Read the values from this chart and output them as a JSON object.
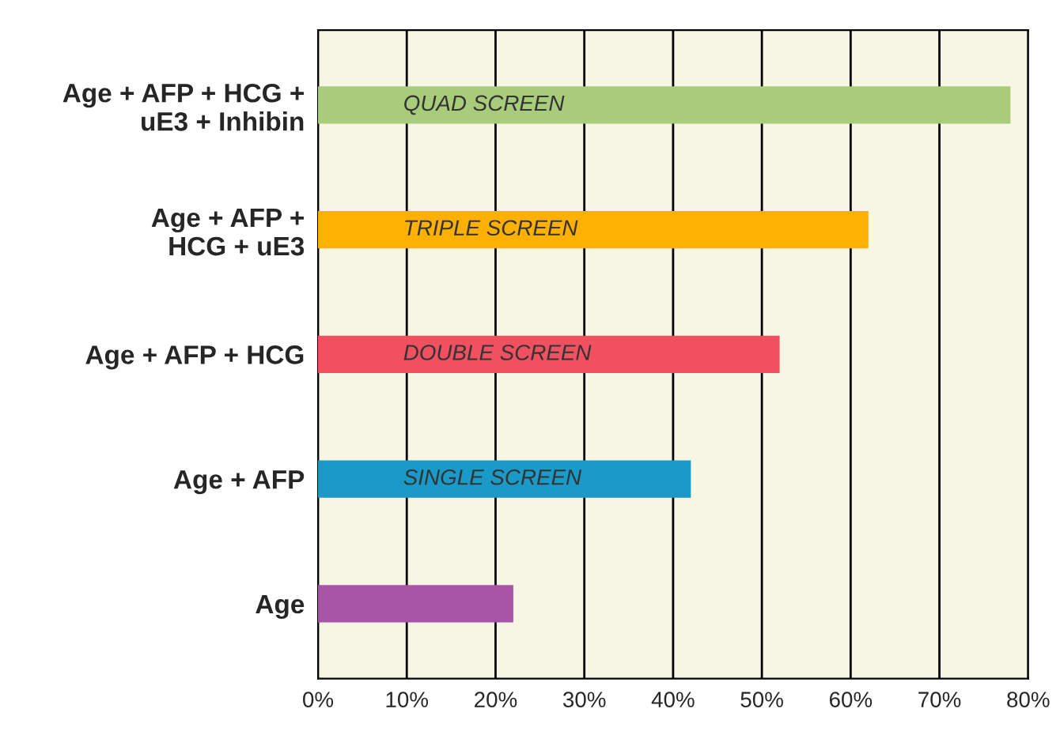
{
  "chart_data": {
    "type": "bar",
    "orientation": "horizontal",
    "categories": [
      "Age + AFP + HCG +\nuE3 + Inhibin",
      "Age + AFP +\nHCG + uE3",
      "Age + AFP + HCG",
      "Age + AFP",
      "Age"
    ],
    "values": [
      78,
      62,
      52,
      42,
      22
    ],
    "colors": [
      "#a9cc7a",
      "#ffb000",
      "#f05060",
      "#1a9ac9",
      "#a855a8"
    ],
    "xlim": [
      0,
      80
    ],
    "xticks": [
      {
        "value": 0,
        "label": "0%"
      },
      {
        "value": 10,
        "label": "10%"
      },
      {
        "value": 20,
        "label": "20%"
      },
      {
        "value": 30,
        "label": "30%"
      },
      {
        "value": 40,
        "label": "40%"
      },
      {
        "value": 50,
        "label": "50%"
      },
      {
        "value": 60,
        "label": "60%"
      },
      {
        "value": 70,
        "label": "70%"
      },
      {
        "value": 80,
        "label": "80%"
      }
    ],
    "grid": "x",
    "annotations": [
      "QUAD SCREEN",
      "TRIPLE SCREEN",
      "DOUBLE SCREEN",
      "SINGLE SCREEN"
    ]
  }
}
